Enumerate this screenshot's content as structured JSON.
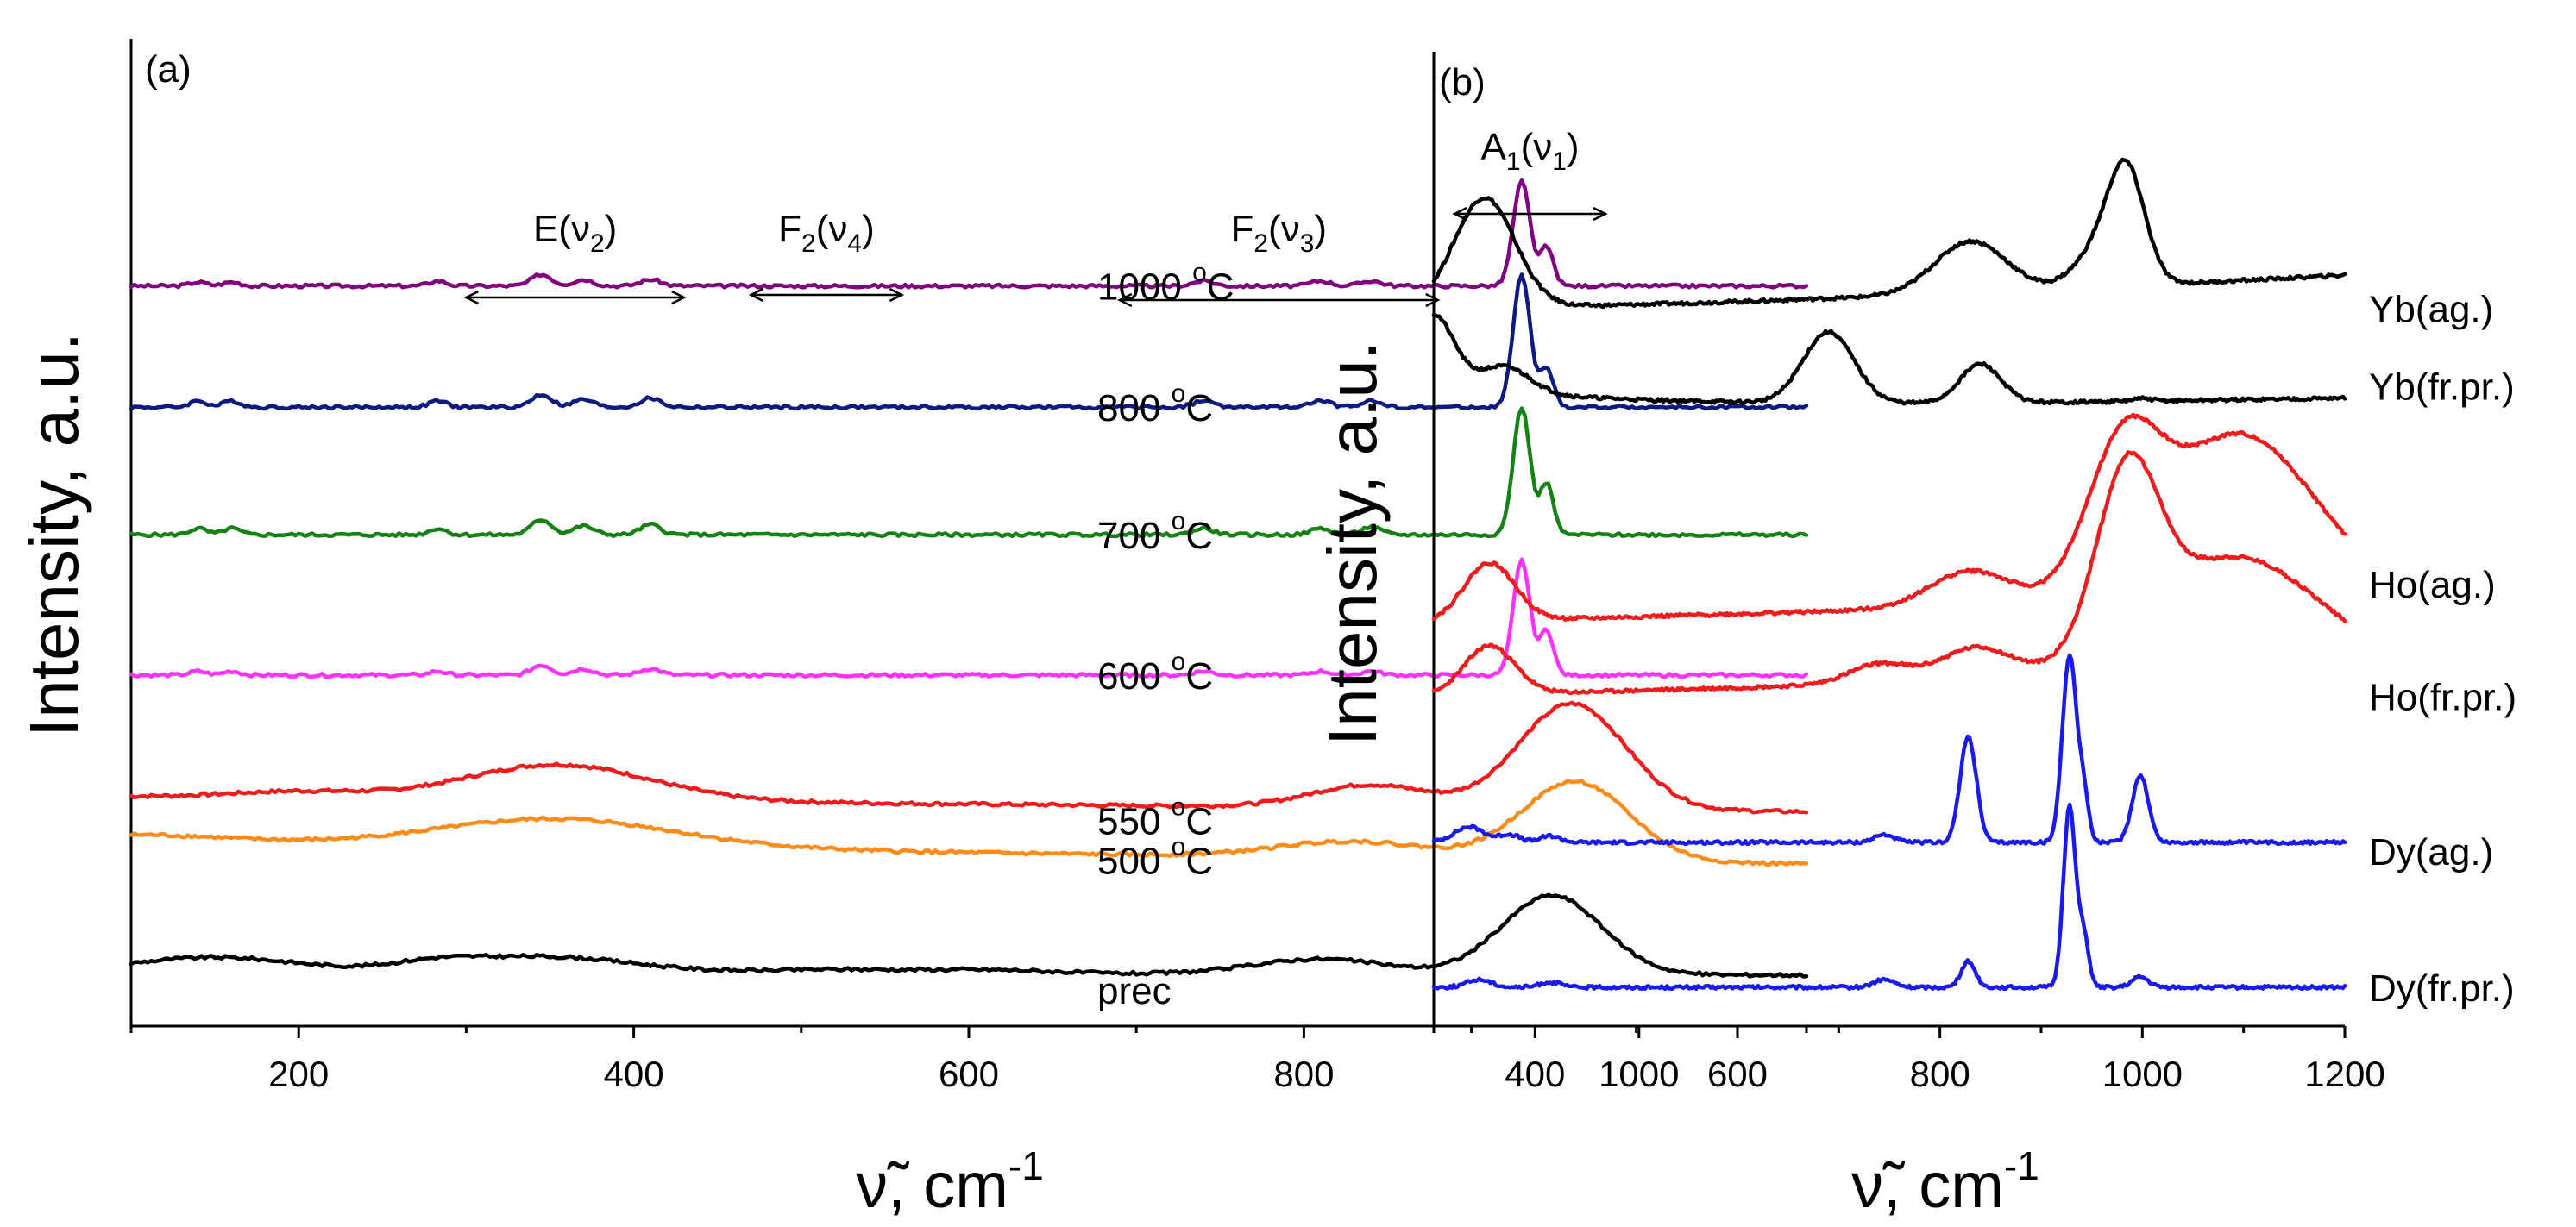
{
  "chart_data": [
    {
      "type": "line",
      "panel_label": "(a)",
      "title": "",
      "xlabel": "ν̃, cm",
      "xlabel_sup": "-1",
      "ylabel": "Intensity, a.u.",
      "xlim": [
        100,
        1100
      ],
      "xticks": [
        200,
        400,
        600,
        800,
        1000
      ],
      "ytick_labels": false,
      "grid": false,
      "annotations": [
        {
          "text": "E(ν",
          "sub": "2",
          "tail": ")",
          "range": [
            300,
            430
          ]
        },
        {
          "text": "F",
          "sub": "2",
          "mid": "(ν",
          "sub2": "4",
          "tail": ")",
          "range": [
            470,
            560
          ]
        },
        {
          "text": "F",
          "sub": "2",
          "mid": "(ν",
          "sub2": "3",
          "tail": ")",
          "range": [
            690,
            880
          ]
        },
        {
          "text": "A",
          "sub": "1",
          "mid": "(ν",
          "sub2": "1",
          "tail": ")",
          "range": [
            890,
            980
          ]
        }
      ],
      "series": [
        {
          "name": "1000 °C",
          "label": "1000 ",
          "unit": "C",
          "deg": "o",
          "color": "#800080",
          "offset": 5.8,
          "peaks": [
            [
              930,
              0.82,
              5
            ],
            [
              945,
              0.3,
              4
            ],
            [
              345,
              0.09,
              6
            ],
            [
              370,
              0.05,
              6
            ],
            [
              410,
              0.05,
              6
            ],
            [
              283,
              0.04,
              5
            ],
            [
              140,
              0.03,
              5
            ],
            [
              160,
              0.03,
              5
            ],
            [
              740,
              0.04,
              6
            ],
            [
              810,
              0.04,
              6
            ],
            [
              840,
              0.04,
              6
            ]
          ]
        },
        {
          "name": "800 °C",
          "label": "800 ",
          "unit": "C",
          "deg": "o",
          "color": "#0e1a80",
          "offset": 4.85,
          "peaks": [
            [
              930,
              1.04,
              5
            ],
            [
              945,
              0.3,
              4
            ],
            [
              345,
              0.1,
              6
            ],
            [
              370,
              0.06,
              6
            ],
            [
              410,
              0.07,
              6
            ],
            [
              283,
              0.05,
              5
            ],
            [
              140,
              0.05,
              5
            ],
            [
              160,
              0.05,
              5
            ],
            [
              740,
              0.05,
              6
            ],
            [
              810,
              0.05,
              6
            ],
            [
              840,
              0.05,
              6
            ]
          ]
        },
        {
          "name": "700 °C",
          "label": "700 ",
          "unit": "C",
          "deg": "o",
          "color": "#148214",
          "offset": 3.85,
          "peaks": [
            [
              930,
              1.0,
              5
            ],
            [
              945,
              0.4,
              4
            ],
            [
              345,
              0.12,
              6
            ],
            [
              370,
              0.07,
              6
            ],
            [
              410,
              0.08,
              6
            ],
            [
              283,
              0.05,
              5
            ],
            [
              140,
              0.05,
              5
            ],
            [
              160,
              0.05,
              5
            ],
            [
              740,
              0.05,
              6
            ],
            [
              810,
              0.05,
              6
            ],
            [
              840,
              0.06,
              6
            ]
          ]
        },
        {
          "name": "600 °C",
          "label": "600 ",
          "unit": "C",
          "deg": "o",
          "color": "#ff33ff",
          "offset": 2.75,
          "peaks": [
            [
              930,
              0.9,
              5
            ],
            [
              945,
              0.35,
              4
            ],
            [
              345,
              0.08,
              6
            ],
            [
              370,
              0.05,
              6
            ],
            [
              410,
              0.05,
              6
            ],
            [
              283,
              0.03,
              5
            ],
            [
              140,
              0.03,
              5
            ],
            [
              160,
              0.03,
              5
            ],
            [
              740,
              0.03,
              6
            ],
            [
              810,
              0.03,
              6
            ],
            [
              840,
              0.03,
              6
            ]
          ]
        },
        {
          "name": "550 °C",
          "label": "550 ",
          "unit": "C",
          "deg": "o",
          "color": "#ee1c1c",
          "offset": 1.8,
          "peaks": [
            [
              355,
              0.28,
              55
            ],
            [
              840,
              0.18,
              35
            ],
            [
              960,
              0.83,
              32
            ],
            [
              200,
              0.05,
              40
            ]
          ],
          "slope": -0.12
        },
        {
          "name": "500 °C",
          "label": "500 ",
          "unit": "C",
          "deg": "o",
          "color": "#ff8c1a",
          "offset": 1.45,
          "peaks": [
            [
              355,
              0.22,
              70
            ],
            [
              830,
              0.13,
              45
            ],
            [
              962,
              0.62,
              32
            ],
            [
              110,
              0.05,
              50
            ]
          ],
          "slope": -0.18
        },
        {
          "name": "prec",
          "label": "prec",
          "unit": "",
          "deg": "",
          "color": "#000000",
          "offset": 0.42,
          "peaks": [
            [
              150,
              0.12,
              50
            ],
            [
              345,
              0.13,
              55
            ],
            [
              520,
              0.03,
              40
            ],
            [
              610,
              0.03,
              40
            ],
            [
              810,
              0.12,
              40
            ],
            [
              948,
              0.62,
              30
            ],
            [
              280,
              0.05,
              25
            ]
          ],
          "slope": -0.02
        }
      ]
    },
    {
      "type": "line",
      "panel_label": "(b)",
      "title": "",
      "xlabel": "ν̃, cm",
      "xlabel_sup": "-1",
      "ylabel": "Intensity, a.u.",
      "xlim": [
        300,
        1200
      ],
      "xticks": [
        400,
        600,
        800,
        1000,
        1200
      ],
      "ytick_labels": false,
      "grid": false,
      "series": [
        {
          "name": "Yb(ag.)",
          "label": "Yb(ag.)",
          "color": "#000000",
          "offset": 5.55,
          "peaks": [
            [
              350,
              0.85,
              30
            ],
            [
              830,
              0.4,
              35
            ],
            [
              985,
              0.78,
              18
            ],
            [
              960,
              0.3,
              25
            ]
          ],
          "slope": 0.45,
          "decay": 600
        },
        {
          "name": "Yb(fr.pr.)",
          "label": "Yb(fr.pr.)",
          "color": "#000000",
          "offset": 4.95,
          "peaks": [
            [
              300,
              0.55,
              20
            ],
            [
              370,
              0.2,
              25
            ],
            [
              690,
              0.55,
              25
            ],
            [
              840,
              0.3,
              20
            ],
            [
              1000,
              0.02,
              10
            ]
          ],
          "slope": 0.15,
          "decay": 250
        },
        {
          "name": "Ho(ag.)",
          "label": "Ho(ag.)",
          "color": "#ee1c1c",
          "offset": 3.12,
          "peaks": [
            [
              355,
              0.45,
              25
            ],
            [
              830,
              0.28,
              40
            ],
            [
              980,
              1.0,
              35
            ],
            [
              1095,
              1.28,
              75
            ]
          ],
          "slope": 0.2
        },
        {
          "name": "Ho(fr.pr.)",
          "label": "Ho(fr.pr.)",
          "color": "#ee1c1c",
          "offset": 2.55,
          "peaks": [
            [
              355,
              0.38,
              25
            ],
            [
              740,
              0.15,
              30
            ],
            [
              835,
              0.25,
              35
            ],
            [
              985,
              1.3,
              30
            ],
            [
              1090,
              0.9,
              85
            ]
          ],
          "slope": 0.2
        },
        {
          "name": "Dy(ag.)",
          "label": "Dy(ag.)",
          "color": "#1a1aee",
          "offset": 1.42,
          "peaks": [
            [
              335,
              0.12,
              15
            ],
            [
              375,
              0.06,
              10
            ],
            [
              415,
              0.05,
              10
            ],
            [
              745,
              0.06,
              10
            ],
            [
              828,
              0.82,
              8
            ],
            [
              928,
              1.45,
              7
            ],
            [
              942,
              0.35,
              5
            ],
            [
              998,
              0.52,
              8
            ]
          ]
        },
        {
          "name": "Dy(fr.pr.)",
          "label": "Dy(fr.pr.)",
          "color": "#1a1aee",
          "offset": 0.3,
          "peaks": [
            [
              345,
              0.06,
              12
            ],
            [
              415,
              0.04,
              10
            ],
            [
              745,
              0.06,
              10
            ],
            [
              828,
              0.2,
              7
            ],
            [
              928,
              1.4,
              6
            ],
            [
              942,
              0.4,
              5
            ],
            [
              998,
              0.08,
              8
            ]
          ]
        }
      ]
    }
  ]
}
